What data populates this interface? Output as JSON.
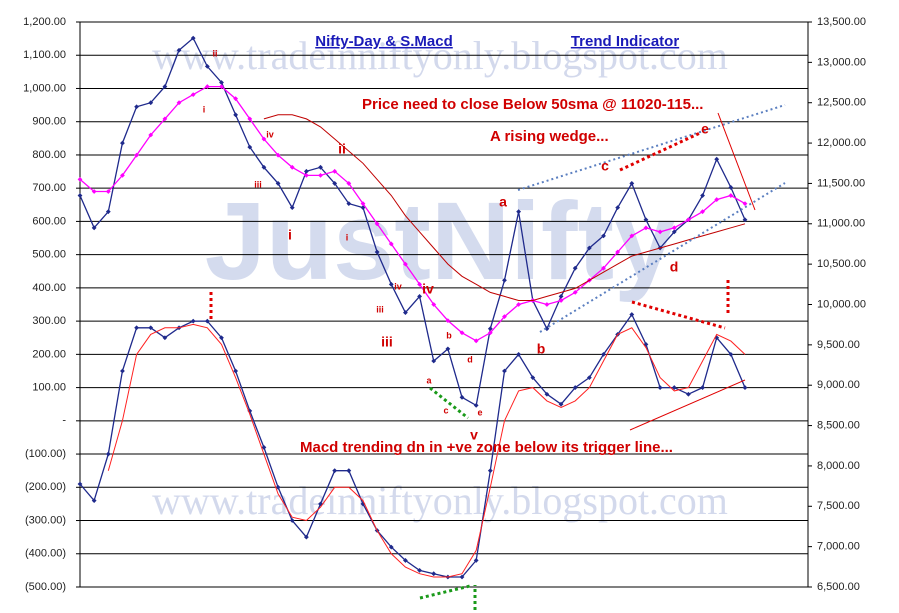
{
  "chart_data": {
    "type": "line",
    "title": "Nifty-Day & S.Macd",
    "subtitle": "Trend Indicator",
    "watermarks": [
      "www.tradeinniftyonly.blogspot.com",
      "JustNifty",
      "www.tradeinniftyonly.blogspot.com"
    ],
    "annotations": [
      "Price need to close Below 50sma @ 11020-115...",
      "A rising wedge...",
      "Macd trending dn in +ve zone below its trigger line...",
      "ii",
      "i",
      "iv",
      "iii",
      "i",
      "ii",
      "i",
      "iii",
      "iv",
      "iii",
      "iv",
      "a",
      "b",
      "c",
      "d",
      "e",
      "a",
      "b",
      "c",
      "d",
      "e",
      "v"
    ],
    "ylim": [
      -500,
      1200
    ],
    "yticks": [
      {
        "value": 1200,
        "label": "1,200.00"
      },
      {
        "value": 1100,
        "label": "1,100.00"
      },
      {
        "value": 1000,
        "label": "1,000.00"
      },
      {
        "value": 900,
        "label": "900.00"
      },
      {
        "value": 800,
        "label": "800.00"
      },
      {
        "value": 700,
        "label": "700.00"
      },
      {
        "value": 600,
        "label": "600.00"
      },
      {
        "value": 500,
        "label": "500.00"
      },
      {
        "value": 400,
        "label": "400.00"
      },
      {
        "value": 300,
        "label": "300.00"
      },
      {
        "value": 200,
        "label": "200.00"
      },
      {
        "value": 100,
        "label": "100.00"
      },
      {
        "value": 0,
        "label": "-"
      },
      {
        "value": -100,
        "label": "(100.00)"
      },
      {
        "value": -200,
        "label": "(200.00)"
      },
      {
        "value": -300,
        "label": "(300.00)"
      },
      {
        "value": -400,
        "label": "(400.00)"
      },
      {
        "value": -500,
        "label": "(500.00)"
      }
    ],
    "y2lim": [
      6500,
      13500
    ],
    "y2ticks": [
      {
        "value": 13500,
        "label": "13,500.00"
      },
      {
        "value": 13000,
        "label": "13,000.00"
      },
      {
        "value": 12500,
        "label": "12,500.00"
      },
      {
        "value": 12000,
        "label": "12,000.00"
      },
      {
        "value": 11500,
        "label": "11,500.00"
      },
      {
        "value": 11000,
        "label": "11,000.00"
      },
      {
        "value": 10500,
        "label": "10,500.00"
      },
      {
        "value": 10000,
        "label": "10,000.00"
      },
      {
        "value": 9500,
        "label": "9,500.00"
      },
      {
        "value": 9000,
        "label": "9,000.00"
      },
      {
        "value": 8500,
        "label": "8,500.00"
      },
      {
        "value": 8000,
        "label": "8,000.00"
      },
      {
        "value": 7500,
        "label": "7,500.00"
      },
      {
        "value": 7000,
        "label": "7,000.00"
      },
      {
        "value": 6500,
        "label": "6,500.00"
      }
    ],
    "grid": true,
    "series": [
      {
        "color": "#1f2a8c",
        "axis": "y2",
        "markers": true,
        "values": [
          11350,
          10950,
          11150,
          12000,
          12450,
          12500,
          12700,
          13150,
          13300,
          12950,
          12750,
          12350,
          11950,
          11700,
          11500,
          11200,
          11650,
          11700,
          11500,
          11250,
          11200,
          10650,
          10250,
          9900,
          10100,
          9300,
          9450,
          8850,
          8750,
          9700,
          10300,
          11150,
          10050,
          9700,
          10100,
          10450,
          10700,
          10850,
          11200,
          11500,
          11050,
          10700,
          10900,
          11050,
          11350,
          11800,
          11450,
          11050
        ]
      },
      {
        "color": "#ff00ff",
        "axis": "y2",
        "markers": true,
        "values": [
          11550,
          11400,
          11400,
          11600,
          11850,
          12100,
          12300,
          12500,
          12600,
          12700,
          12700,
          12550,
          12300,
          12050,
          11850,
          11700,
          11600,
          11600,
          11650,
          11500,
          11250,
          11000,
          10750,
          10500,
          10250,
          10000,
          9800,
          9650,
          9550,
          9650,
          9850,
          10000,
          10050,
          10000,
          10050,
          10150,
          10300,
          10450,
          10650,
          10850,
          10950,
          10900,
          10950,
          11050,
          11150,
          11300,
          11350,
          11250
        ]
      },
      {
        "color": "#c00000",
        "axis": "y2",
        "markers": false,
        "values": [
          null,
          null,
          null,
          null,
          null,
          null,
          null,
          null,
          null,
          null,
          null,
          null,
          null,
          12300,
          12350,
          12350,
          12300,
          12200,
          12050,
          11900,
          11750,
          11550,
          11350,
          11100,
          10900,
          10700,
          10500,
          10350,
          10250,
          10150,
          10100,
          10050,
          10050,
          10100,
          10150,
          10200,
          10300,
          10400,
          10500,
          10600,
          10650,
          10700,
          10750,
          10800,
          10850,
          10900,
          10950,
          11000
        ]
      },
      {
        "color": "#1f2a8c",
        "markers": true,
        "values": [
          -190,
          -240,
          -100,
          150,
          280,
          280,
          250,
          280,
          300,
          300,
          250,
          150,
          30,
          -80,
          -200,
          -300,
          -350,
          -250,
          -150,
          -150,
          -250,
          -330,
          -380,
          -420,
          -450,
          -460,
          -470,
          -470,
          -420,
          -150,
          150,
          200,
          130,
          80,
          50,
          100,
          130,
          200,
          260,
          320,
          230,
          100,
          100,
          80,
          100,
          250,
          200,
          100
        ]
      },
      {
        "color": "#ff2020",
        "markers": false,
        "values": [
          null,
          null,
          -150,
          0,
          200,
          260,
          280,
          280,
          290,
          280,
          230,
          130,
          20,
          -100,
          -220,
          -290,
          -300,
          -260,
          -200,
          -200,
          -240,
          -330,
          -400,
          -440,
          -460,
          -470,
          -470,
          -460,
          -390,
          -200,
          0,
          90,
          100,
          60,
          40,
          60,
          100,
          180,
          260,
          280,
          220,
          130,
          90,
          100,
          180,
          260,
          240,
          200
        ]
      }
    ]
  }
}
